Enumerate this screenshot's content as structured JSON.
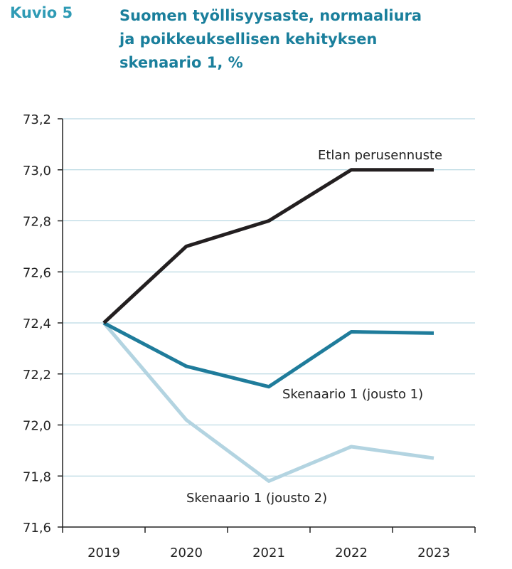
{
  "figure_label": "Kuvio 5",
  "title_lines": [
    "Suomen työllisyysaste, normaaliura",
    "ja poikkeuksellisen kehityksen",
    "skenaario 1, %"
  ],
  "chart_data": {
    "type": "line",
    "title": "Suomen työllisyysaste, normaaliura ja poikkeuksellisen kehityksen skenaario 1, %",
    "x": [
      "2019",
      "2020",
      "2021",
      "2022",
      "2023"
    ],
    "ylim": [
      71.6,
      73.2
    ],
    "yticks": [
      "71,6",
      "71,8",
      "72,0",
      "72,2",
      "72,4",
      "72,6",
      "72,8",
      "73,0",
      "73,2"
    ],
    "ytick_values": [
      71.6,
      71.8,
      72.0,
      72.2,
      72.4,
      72.6,
      72.8,
      73.0,
      73.2
    ],
    "grid": true,
    "series": [
      {
        "name": "Etlan perusennuste",
        "values": [
          72.4,
          72.7,
          72.8,
          73.0,
          73.0
        ],
        "color": "#231f20"
      },
      {
        "name": "Skenaario 1 (jousto 1)",
        "values": [
          72.4,
          72.23,
          72.15,
          72.365,
          72.36
        ],
        "color": "#1f7c9b"
      },
      {
        "name": "Skenaario 1 (jousto 2)",
        "values": [
          72.4,
          72.02,
          71.78,
          71.915,
          71.87
        ],
        "color": "#b3d4e1"
      }
    ]
  }
}
